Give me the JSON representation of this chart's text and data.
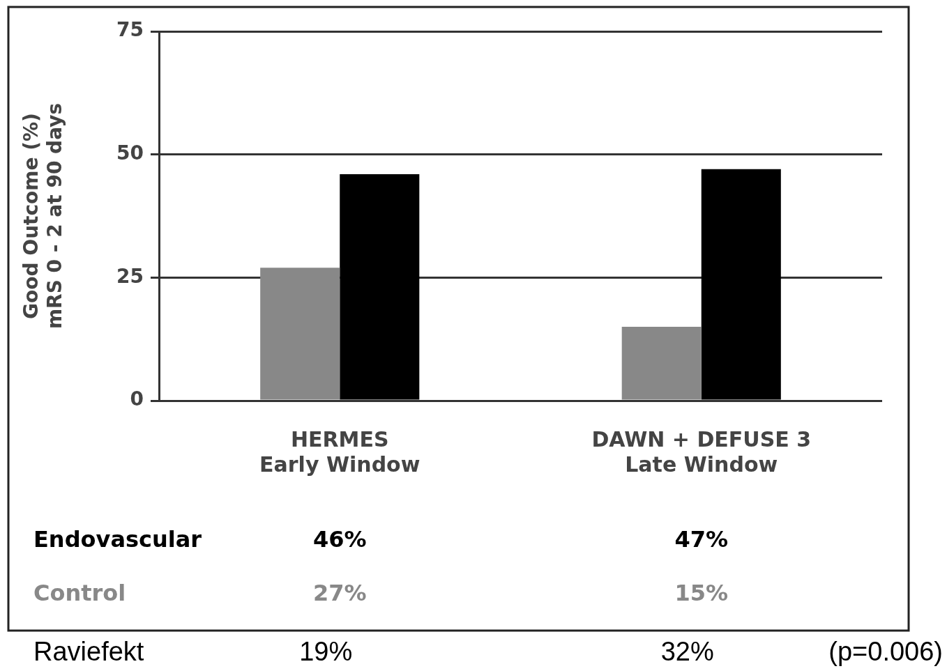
{
  "chart_data": {
    "type": "bar",
    "ylabel": "Good Outcome (%)\nmRS 0 - 2 at 90 days",
    "categories": [
      "HERMES\nEarly Window",
      "DAWN + DEFUSE 3\nLate Window"
    ],
    "series": [
      {
        "name": "Control",
        "color": "#888888",
        "values": [
          27,
          15
        ],
        "value_labels": [
          "27%",
          "15%"
        ]
      },
      {
        "name": "Endovascular",
        "color": "#000000",
        "values": [
          46,
          47
        ],
        "value_labels": [
          "46%",
          "47%"
        ]
      }
    ],
    "ylim": [
      0,
      75
    ],
    "yticks": [
      0,
      25,
      50,
      75
    ],
    "grid": "y",
    "legend": false,
    "annotations": [
      "Raviefekt",
      "19%",
      "32%",
      "(p=0.006)"
    ]
  }
}
